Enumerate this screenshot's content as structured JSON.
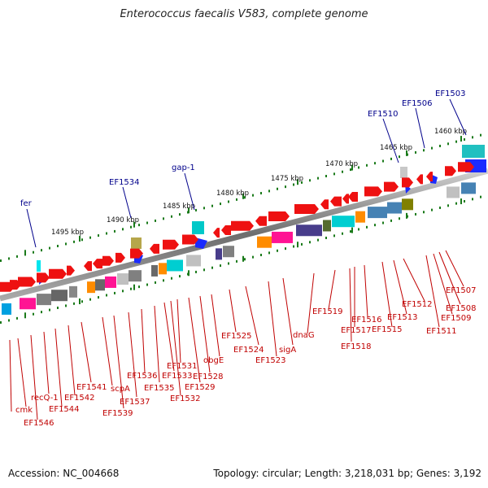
{
  "title": "Enterococcus faecalis V583, complete genome",
  "footer": {
    "accession": "Accession: NC_004668",
    "summary": "Topology: circular; Length: 3,218,031 bp; Genes: 3,192"
  },
  "scale_labels": [
    "1460 kbp",
    "1465 kbp",
    "1470 kbp",
    "1475 kbp",
    "1480 kbp",
    "1485 kbp",
    "1490 kbp",
    "1495 kbp"
  ],
  "top_gene_labels": [
    "EF1503",
    "EF1506",
    "EF1510",
    "gap-1",
    "EF1534",
    "fer"
  ],
  "bottom_gene_labels": [
    "EF1507",
    "EF1508",
    "EF1509",
    "EF1511",
    "EF1512",
    "EF1513",
    "EF1515",
    "EF1516",
    "EF1517",
    "EF1518",
    "EF1519",
    "dnaG",
    "sigA",
    "EF1523",
    "EF1524",
    "EF1525",
    "obgE",
    "EF1528",
    "EF1529",
    "EF1531",
    "EF1532",
    "EF1533",
    "EF1535",
    "EF1536",
    "EF1537",
    "EF1539",
    "scpA",
    "EF1541",
    "EF1542",
    "EF1544",
    "recQ-1",
    "EF1546",
    "cmk"
  ],
  "colors": {
    "gene_red": "#ee1111",
    "backbone": "#8a8a8a",
    "tick_green": "#1a7a1a",
    "label_red": "#c00000",
    "label_blue": "#00008b"
  }
}
